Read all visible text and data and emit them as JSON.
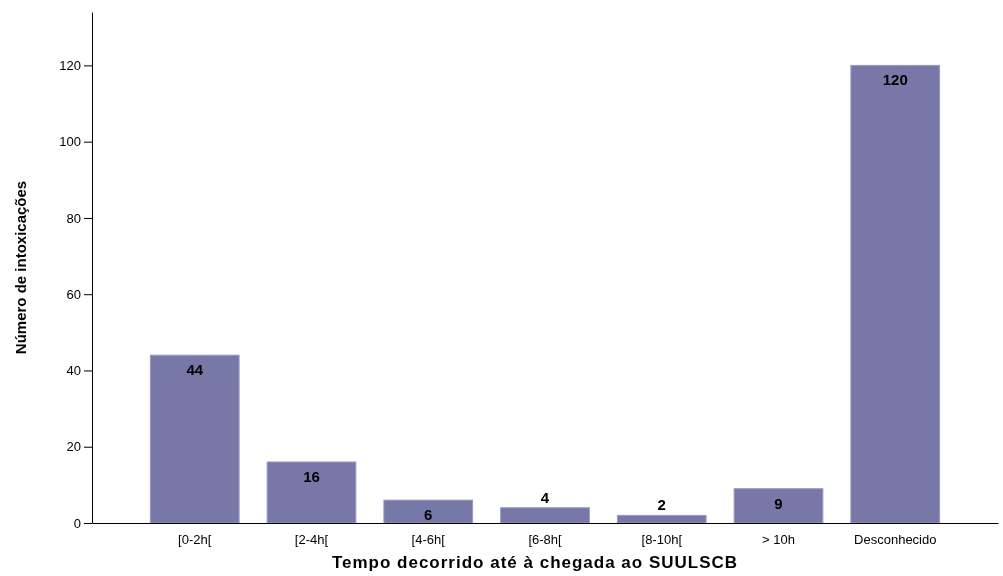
{
  "chart_data": {
    "type": "bar",
    "xlabel": "Tempo decorrido até à chegada ao SUULSCB",
    "ylabel": "Número de intoxicações",
    "categories": [
      "[0-2h[",
      "[2-4h[",
      "[4-6h[",
      "[6-8h[",
      "[8-10h[",
      "> 10h",
      "Desconhecido"
    ],
    "values": [
      44,
      16,
      6,
      4,
      2,
      9,
      120
    ],
    "color": "#7878a8",
    "ylim": [
      0,
      134
    ],
    "yticks": [
      0,
      20,
      40,
      60,
      80,
      100,
      120
    ],
    "grid": false,
    "data_labels": true
  }
}
